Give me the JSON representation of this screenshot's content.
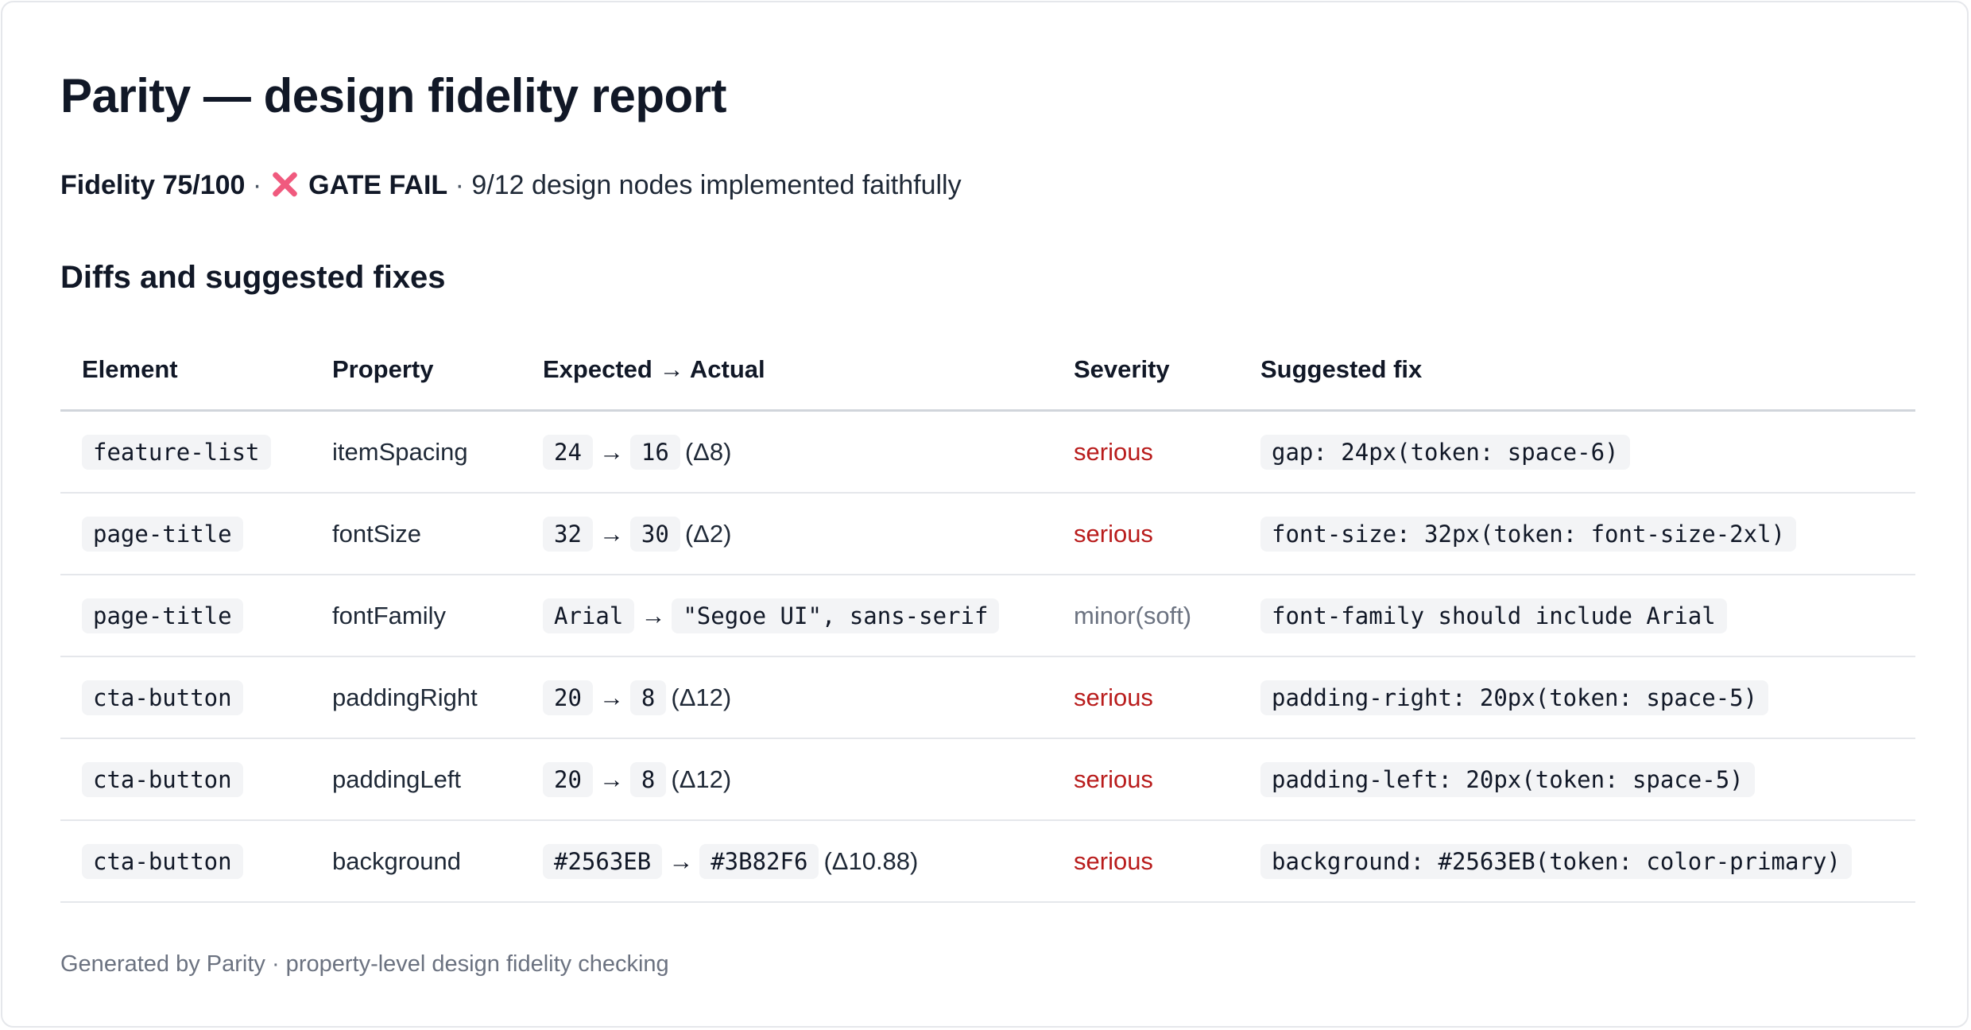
{
  "report": {
    "title": "Parity — design fidelity report",
    "summary": {
      "fidelity": "Fidelity 75/100",
      "sep1": "·",
      "gate_icon": "x-mark-icon",
      "gate": "GATE FAIL",
      "sep2": "·",
      "nodes": "9/12 design nodes implemented faithfully"
    },
    "section_title": "Diffs and suggested fixes",
    "columns": [
      "Element",
      "Property",
      "Expected → Actual",
      "Severity",
      "Suggested fix"
    ],
    "rows": [
      {
        "element": "feature-list",
        "property": "itemSpacing",
        "expected": "24",
        "arrow": "→",
        "actual": "16",
        "delta": "(Δ8)",
        "severity": "serious",
        "fix": "gap: 24px(token: space-6)"
      },
      {
        "element": "page-title",
        "property": "fontSize",
        "expected": "32",
        "arrow": "→",
        "actual": "30",
        "delta": "(Δ2)",
        "severity": "serious",
        "fix": "font-size: 32px(token: font-size-2xl)"
      },
      {
        "element": "page-title",
        "property": "fontFamily",
        "expected": "Arial",
        "arrow": "→",
        "actual": "\"Segoe UI\", sans-serif",
        "delta": "",
        "severity": "minor(soft)",
        "fix": "font-family should include Arial"
      },
      {
        "element": "cta-button",
        "property": "paddingRight",
        "expected": "20",
        "arrow": "→",
        "actual": "8",
        "delta": "(Δ12)",
        "severity": "serious",
        "fix": "padding-right: 20px(token: space-5)"
      },
      {
        "element": "cta-button",
        "property": "paddingLeft",
        "expected": "20",
        "arrow": "→",
        "actual": "8",
        "delta": "(Δ12)",
        "severity": "serious",
        "fix": "padding-left: 20px(token: space-5)"
      },
      {
        "element": "cta-button",
        "property": "background",
        "expected": "#2563EB",
        "arrow": "→",
        "actual": "#3B82F6",
        "delta": "(Δ10.88)",
        "severity": "serious",
        "fix": "background: #2563EB(token: color-primary)"
      }
    ],
    "footer": "Generated by Parity · property-level design fidelity checking",
    "colors": {
      "serious": "#b91c1c",
      "minor": "#6b7280",
      "gate_fail": "#f05a7e"
    }
  }
}
